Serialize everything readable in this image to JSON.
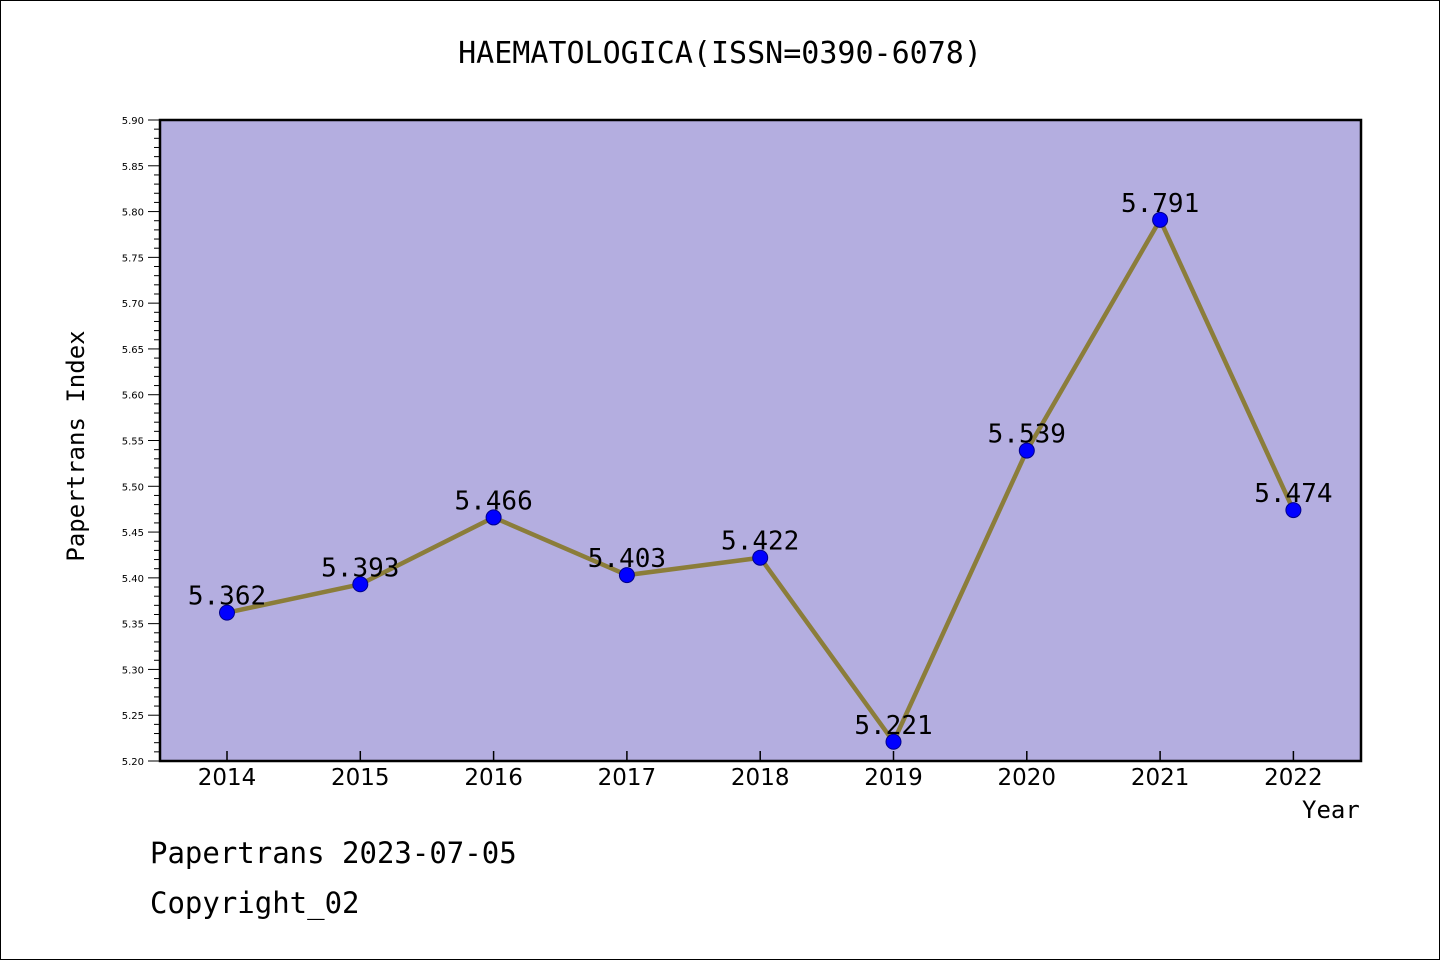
{
  "chart_data": {
    "type": "line",
    "title": "HAEMATOLOGICA(ISSN=0390-6078)",
    "xlabel": "Year",
    "ylabel": "Papertrans Index",
    "categories": [
      "2014",
      "2015",
      "2016",
      "2017",
      "2018",
      "2019",
      "2020",
      "2021",
      "2022"
    ],
    "values": [
      5.362,
      5.393,
      5.466,
      5.403,
      5.422,
      5.221,
      5.539,
      5.791,
      5.474
    ],
    "data_labels": [
      "5.362",
      "5.393",
      "5.466",
      "5.403",
      "5.422",
      "5.221",
      "5.539",
      "5.791",
      "5.474"
    ],
    "ylim": [
      5.2,
      5.9
    ],
    "yticks": [
      "5.20",
      "5.25",
      "5.30",
      "5.35",
      "5.40",
      "5.45",
      "5.50",
      "5.55",
      "5.60",
      "5.65",
      "5.70",
      "5.75",
      "5.80",
      "5.85",
      "5.90"
    ],
    "grid": false,
    "colors": {
      "plot_bg": "#b4aee0",
      "line": "#8b7d3a",
      "marker": "#0000ff",
      "axis": "#000000"
    }
  },
  "footer": {
    "line1": "Papertrans 2023-07-05",
    "line2": "Copyright_02"
  }
}
